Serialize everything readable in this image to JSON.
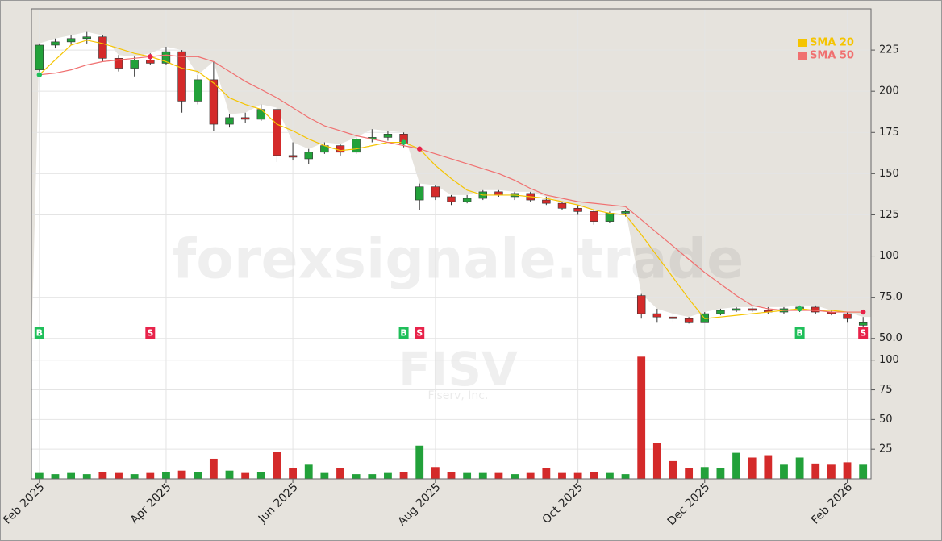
{
  "chart_data": {
    "type": "candlestick",
    "watermark": "forexsignale.trade",
    "symbol": "FISV",
    "company": "Fiserv, Inc.",
    "categories": [
      "Feb 2025",
      null,
      null,
      null,
      null,
      null,
      null,
      null,
      "Apr 2025",
      null,
      null,
      null,
      null,
      null,
      null,
      null,
      "Jun 2025",
      null,
      null,
      null,
      null,
      null,
      null,
      null,
      null,
      "Aug 2025",
      null,
      null,
      null,
      null,
      null,
      null,
      null,
      null,
      "Oct 2025",
      null,
      null,
      null,
      null,
      null,
      null,
      null,
      "Dec 2025",
      null,
      null,
      null,
      null,
      null,
      null,
      null,
      null,
      "Feb 2026",
      null
    ],
    "open": [
      213,
      228,
      230,
      232,
      233,
      220,
      214,
      219,
      217,
      224,
      194,
      207,
      180,
      184,
      183,
      189,
      161,
      159,
      163,
      167,
      163,
      171,
      172,
      174,
      134,
      142,
      136,
      133,
      135,
      139,
      136,
      138,
      134,
      132,
      129,
      127,
      121,
      126,
      76,
      65,
      63,
      62,
      60,
      65,
      67,
      68,
      67,
      66,
      68,
      69,
      66,
      65,
      58
    ],
    "high": [
      229,
      232,
      234,
      236,
      234,
      222,
      221,
      223,
      227,
      225,
      210,
      218,
      186,
      187,
      192,
      190,
      169,
      165,
      169,
      168,
      172,
      177,
      176,
      175,
      144,
      143,
      137,
      137,
      140,
      140,
      139,
      139,
      136,
      133,
      131,
      128,
      127,
      128,
      77,
      68,
      65,
      63,
      66,
      68,
      69,
      69,
      69,
      69,
      70,
      70,
      67,
      66,
      63
    ],
    "low": [
      212,
      226,
      228,
      229,
      218,
      212,
      209,
      216,
      216,
      187,
      192,
      176,
      178,
      181,
      182,
      157,
      158,
      156,
      162,
      161,
      162,
      169,
      170,
      166,
      128,
      134,
      131,
      132,
      134,
      136,
      134,
      133,
      131,
      128,
      125,
      119,
      120,
      124,
      62,
      60,
      60,
      59,
      60,
      64,
      66,
      66,
      65,
      65,
      66,
      65,
      64,
      60,
      57
    ],
    "close": [
      228,
      230,
      232,
      233,
      220,
      214,
      219,
      217,
      224,
      194,
      207,
      180,
      184,
      183,
      189,
      161,
      160,
      163,
      167,
      163,
      171,
      172,
      174,
      168,
      142,
      136,
      133,
      135,
      139,
      137,
      138,
      134,
      132,
      129,
      127,
      121,
      126,
      127,
      65,
      63,
      62,
      60,
      65,
      67,
      68,
      67,
      66,
      68,
      69,
      66,
      65,
      62,
      60
    ],
    "volume": [
      5,
      4,
      5,
      4,
      6,
      5,
      4,
      5,
      6,
      7,
      6,
      17,
      7,
      5,
      6,
      23,
      9,
      12,
      5,
      9,
      4,
      4,
      5,
      6,
      28,
      10,
      6,
      5,
      5,
      5,
      4,
      5,
      9,
      5,
      5,
      6,
      5,
      4,
      103,
      30,
      15,
      9,
      10,
      9,
      22,
      18,
      20,
      12,
      18,
      13,
      12,
      14,
      12
    ],
    "up_color": "#22a13a",
    "down_color": "#d42a2a",
    "series": [
      {
        "name": "SMA 20",
        "color": "#f5c400",
        "values": [
          210,
          219,
          228,
          231,
          229,
          226,
          223,
          221,
          218,
          214,
          212,
          205,
          196,
          192,
          189,
          180,
          176,
          171,
          167,
          164,
          165,
          167,
          169,
          169,
          165,
          155,
          147,
          140,
          137,
          137,
          137,
          136,
          135,
          133,
          131,
          128,
          126,
          125,
          113,
          100,
          87,
          74,
          62,
          63,
          64,
          65,
          66,
          67,
          68,
          67,
          67,
          66,
          66
        ]
      },
      {
        "name": "SMA 50",
        "color": "#f07070",
        "values": [
          210,
          211,
          213,
          216,
          218,
          219,
          220,
          221,
          222,
          221,
          221,
          218,
          212,
          206,
          201,
          196,
          190,
          184,
          179,
          176,
          173,
          171,
          169,
          167,
          165,
          162,
          159,
          156,
          153,
          150,
          146,
          141,
          137,
          135,
          133,
          132,
          131,
          130,
          122,
          114,
          106,
          98,
          90,
          83,
          76,
          70,
          68,
          67,
          67,
          67,
          66,
          66,
          66
        ]
      }
    ],
    "signals": [
      {
        "label": "B",
        "color": "#1fbf5a",
        "values": [
          210,
          null,
          null,
          null,
          null,
          null,
          null,
          null,
          null,
          null,
          null,
          null,
          null,
          null,
          null,
          null,
          null,
          null,
          null,
          null,
          null,
          null,
          null,
          169,
          null,
          null,
          null,
          null,
          null,
          null,
          null,
          null,
          null,
          null,
          null,
          null,
          null,
          null,
          null,
          null,
          null,
          null,
          null,
          null,
          null,
          null,
          null,
          null,
          68,
          null,
          null,
          null,
          null
        ]
      },
      {
        "label": "S",
        "color": "#e8234a",
        "values": [
          null,
          null,
          null,
          null,
          null,
          null,
          null,
          221,
          null,
          null,
          null,
          null,
          null,
          null,
          null,
          null,
          null,
          null,
          null,
          null,
          null,
          null,
          null,
          null,
          165,
          null,
          null,
          null,
          null,
          null,
          null,
          null,
          null,
          null,
          null,
          null,
          null,
          null,
          null,
          null,
          null,
          null,
          null,
          null,
          null,
          null,
          null,
          null,
          null,
          null,
          null,
          null,
          66
        ]
      }
    ],
    "ylim": [
      44,
      250
    ],
    "yticks": [
      {
        "value": 50,
        "label": "50.0"
      },
      {
        "value": 75,
        "label": "75.0"
      },
      100,
      125,
      150,
      175,
      200,
      225
    ],
    "volume_ylim": [
      0,
      110
    ],
    "volume_yticks": [
      25,
      50,
      75,
      100
    ],
    "grid": true
  }
}
